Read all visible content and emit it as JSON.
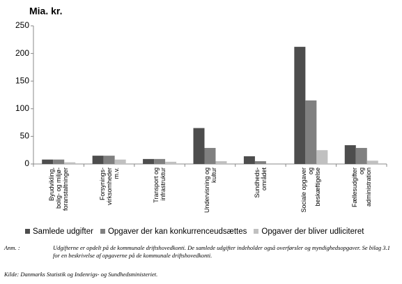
{
  "chart_data": {
    "type": "bar",
    "title": "Mia. kr.",
    "categories": [
      "Byudvikling,\nbolig- og miljø-\nforanstaltninger",
      "Forsynings-\nvirksomheder\nm.v.",
      "Transport og\ninfrastruktur",
      "Undervisning og\nkultur",
      "Sundheds-\nområdet",
      "Sociale opgaver\nog\nbeskæftigelse",
      "Fællesudgifter\nog\nadministration"
    ],
    "series": [
      {
        "name": "Samlede udgifter",
        "color": "#4d4d4d",
        "values": [
          8,
          15,
          9,
          65,
          14,
          212,
          34
        ]
      },
      {
        "name": "Opgaver der kan konkurrenceudsættes",
        "color": "#808080",
        "values": [
          8,
          15,
          9,
          29,
          5,
          115,
          29
        ]
      },
      {
        "name": "Opgaver der bliver udliciteret",
        "color": "#c0c0c0",
        "values": [
          3,
          8,
          4,
          5,
          0,
          25,
          6
        ]
      }
    ],
    "ylim": [
      0,
      250
    ],
    "yticks": [
      0,
      50,
      100,
      150,
      200,
      250
    ],
    "grid": false
  },
  "notes": {
    "anm_label": "Anm. :",
    "anm_text": "Udgifterne er opdelt på de kommunale driftshovedkonti. De samlede udgifter indeholder også overførsler og myndighedsopgaver. Se bilag 3.1 for en beskrivelse af opgaverne på de kommunale driftshovedkonti.",
    "source": "Kilde: Danmarks Statistik og Indenrigs- og Sundhedsministeriet."
  }
}
